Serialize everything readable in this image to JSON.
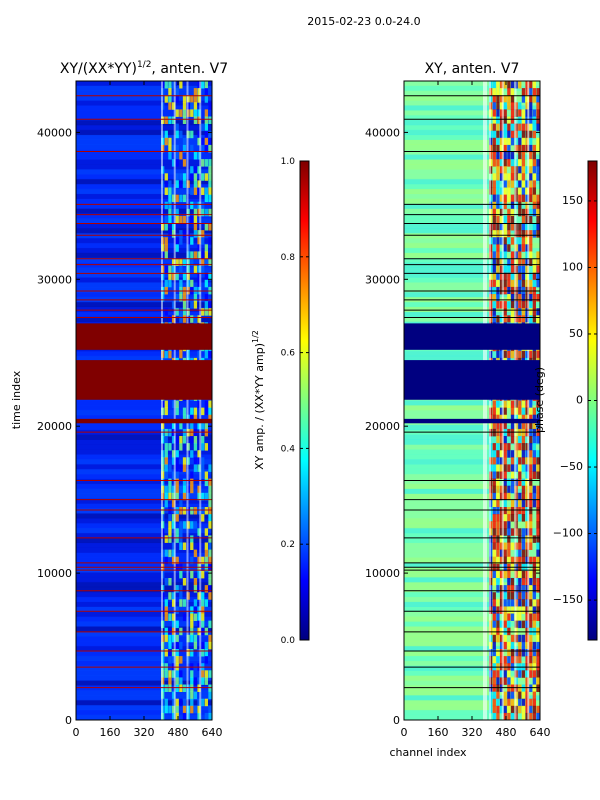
{
  "suptitle": "2015-02-23 0.0-24.0",
  "colormap_stops": [
    "#00007f",
    "#0000ff",
    "#007fff",
    "#00ffff",
    "#7fff7f",
    "#ffff00",
    "#ff7f00",
    "#ff0000",
    "#7f0000"
  ],
  "chart_data": [
    {
      "type": "heatmap",
      "title_main": "XY/(XX*YY)",
      "title_sup": "1/2",
      "title_tail": ", anten. V7",
      "xlabel": "",
      "ylabel": "time index",
      "xlim": [
        0,
        640
      ],
      "ylim": [
        0,
        43500
      ],
      "xticks": [
        0,
        160,
        320,
        480,
        640
      ],
      "yticks": [
        0,
        10000,
        20000,
        30000,
        40000
      ],
      "colorbar": {
        "label_main": "XY amp. / (XX*YY amp)",
        "label_sup": "1/2",
        "range": [
          0.0,
          1.0
        ],
        "ticks": [
          "0.0",
          "0.2",
          "0.4",
          "0.6",
          "0.8",
          "1.0"
        ]
      },
      "masked_row_bands": [
        [
          21800,
          24500
        ],
        [
          25200,
          27000
        ],
        [
          20200,
          20500
        ]
      ],
      "thin_lines": [
        2200,
        3600,
        4700,
        6000,
        7400,
        8800,
        10200,
        10400,
        10700,
        12400,
        14300,
        15000,
        16300,
        19600,
        27400,
        27900,
        28600,
        29200,
        30400,
        31000,
        31400,
        33000,
        33800,
        34400,
        35100,
        38700,
        40900,
        42500
      ]
    },
    {
      "type": "heatmap",
      "title_main": "XY, anten. V7",
      "xlabel": "channel index",
      "ylabel": "",
      "xlim": [
        0,
        640
      ],
      "ylim": [
        0,
        43500
      ],
      "xticks": [
        0,
        160,
        320,
        480,
        640
      ],
      "yticks": [
        0,
        10000,
        20000,
        30000,
        40000
      ],
      "colorbar": {
        "label_main": "phase (deg)",
        "range": [
          -180,
          180
        ],
        "ticks": [
          "150",
          "100",
          "50",
          "0",
          "−50",
          "−100",
          "−150"
        ],
        "tick_values": [
          150,
          100,
          50,
          0,
          -50,
          -100,
          -150
        ]
      },
      "masked_row_bands": [
        [
          21800,
          24500
        ],
        [
          25200,
          27000
        ],
        [
          20200,
          20500
        ]
      ],
      "thin_lines": [
        2200,
        3600,
        4700,
        6000,
        7400,
        8800,
        10200,
        10400,
        10700,
        12400,
        14300,
        15000,
        16300,
        19600,
        27400,
        27900,
        28600,
        29200,
        30400,
        31000,
        31400,
        33000,
        33800,
        34400,
        35100,
        38700,
        40900,
        42500
      ]
    }
  ]
}
